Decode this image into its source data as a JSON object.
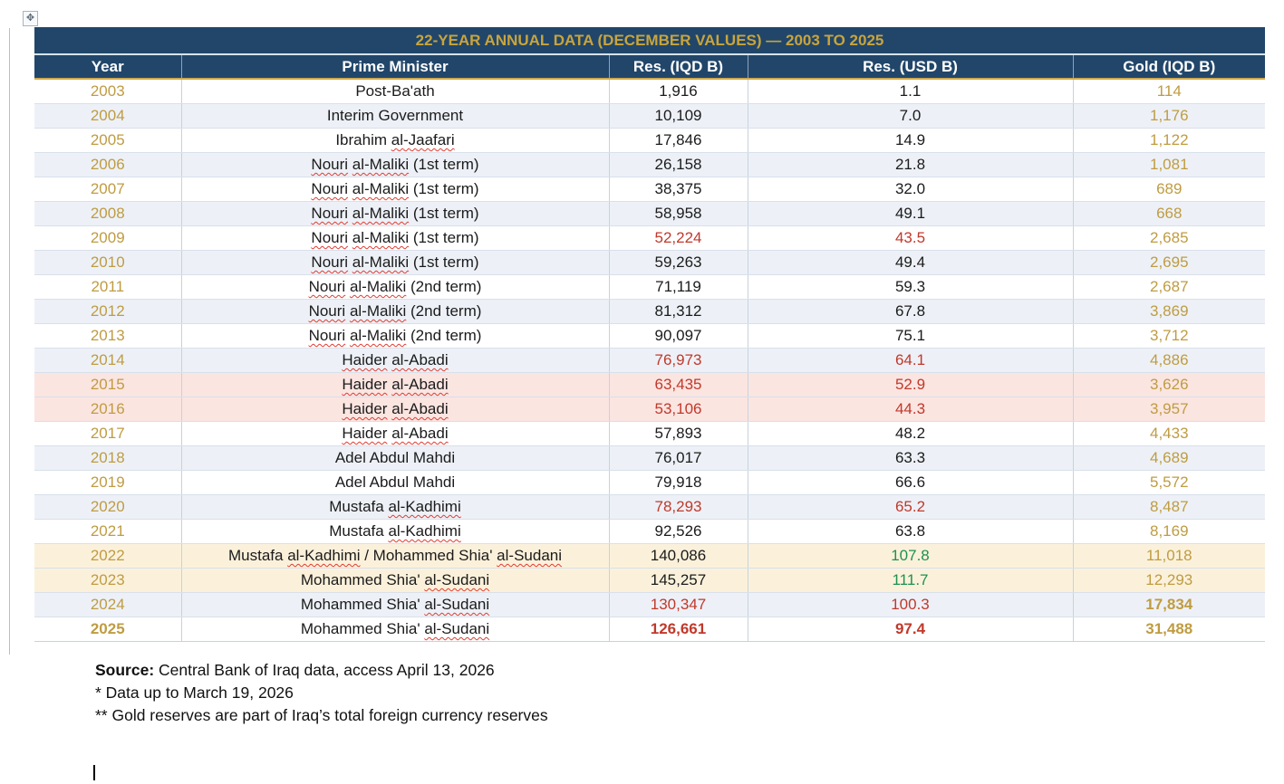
{
  "title": "22-YEAR ANNUAL DATA (DECEMBER VALUES) — 2003 TO 2025",
  "columns": [
    "Year",
    "Prime Minister",
    "Res. (IQD B)",
    "Res. (USD B)",
    "Gold (IQD B)"
  ],
  "rows": [
    {
      "year": "2003",
      "pm": "Post-Ba'ath",
      "res_iqd": "1,916",
      "res_usd": "1.1",
      "gold": "114",
      "bg": "white",
      "iqd_color": "dark",
      "usd_color": "dark",
      "year_bold": false,
      "values_bold": false,
      "gold_bold": false
    },
    {
      "year": "2004",
      "pm": "Interim Government",
      "res_iqd": "10,109",
      "res_usd": "7.0",
      "gold": "1,176",
      "bg": "blue",
      "iqd_color": "dark",
      "usd_color": "dark",
      "year_bold": false,
      "values_bold": false,
      "gold_bold": false
    },
    {
      "year": "2005",
      "pm": "Ibrahim al-Jaafari",
      "res_iqd": "17,846",
      "res_usd": "14.9",
      "gold": "1,122",
      "bg": "white",
      "iqd_color": "dark",
      "usd_color": "dark",
      "year_bold": false,
      "values_bold": false,
      "gold_bold": false
    },
    {
      "year": "2006",
      "pm": "Nouri al-Maliki (1st term)",
      "res_iqd": "26,158",
      "res_usd": "21.8",
      "gold": "1,081",
      "bg": "blue",
      "iqd_color": "dark",
      "usd_color": "dark",
      "year_bold": false,
      "values_bold": false,
      "gold_bold": false
    },
    {
      "year": "2007",
      "pm": "Nouri al-Maliki (1st term)",
      "res_iqd": "38,375",
      "res_usd": "32.0",
      "gold": "689",
      "bg": "white",
      "iqd_color": "dark",
      "usd_color": "dark",
      "year_bold": false,
      "values_bold": false,
      "gold_bold": false
    },
    {
      "year": "2008",
      "pm": "Nouri al-Maliki (1st term)",
      "res_iqd": "58,958",
      "res_usd": "49.1",
      "gold": "668",
      "bg": "blue",
      "iqd_color": "dark",
      "usd_color": "dark",
      "year_bold": false,
      "values_bold": false,
      "gold_bold": false
    },
    {
      "year": "2009",
      "pm": "Nouri al-Maliki (1st term)",
      "res_iqd": "52,224",
      "res_usd": "43.5",
      "gold": "2,685",
      "bg": "white",
      "iqd_color": "red",
      "usd_color": "red",
      "year_bold": false,
      "values_bold": false,
      "gold_bold": false
    },
    {
      "year": "2010",
      "pm": "Nouri al-Maliki (1st term)",
      "res_iqd": "59,263",
      "res_usd": "49.4",
      "gold": "2,695",
      "bg": "blue",
      "iqd_color": "dark",
      "usd_color": "dark",
      "year_bold": false,
      "values_bold": false,
      "gold_bold": false
    },
    {
      "year": "2011",
      "pm": "Nouri al-Maliki (2nd term)",
      "res_iqd": "71,119",
      "res_usd": "59.3",
      "gold": "2,687",
      "bg": "white",
      "iqd_color": "dark",
      "usd_color": "dark",
      "year_bold": false,
      "values_bold": false,
      "gold_bold": false
    },
    {
      "year": "2012",
      "pm": "Nouri al-Maliki (2nd term)",
      "res_iqd": "81,312",
      "res_usd": "67.8",
      "gold": "3,869",
      "bg": "blue",
      "iqd_color": "dark",
      "usd_color": "dark",
      "year_bold": false,
      "values_bold": false,
      "gold_bold": false
    },
    {
      "year": "2013",
      "pm": "Nouri al-Maliki (2nd term)",
      "res_iqd": "90,097",
      "res_usd": "75.1",
      "gold": "3,712",
      "bg": "white",
      "iqd_color": "dark",
      "usd_color": "dark",
      "year_bold": false,
      "values_bold": false,
      "gold_bold": false
    },
    {
      "year": "2014",
      "pm": "Haider al-Abadi",
      "res_iqd": "76,973",
      "res_usd": "64.1",
      "gold": "4,886",
      "bg": "blue",
      "iqd_color": "red",
      "usd_color": "red",
      "year_bold": false,
      "values_bold": false,
      "gold_bold": false
    },
    {
      "year": "2015",
      "pm": "Haider al-Abadi",
      "res_iqd": "63,435",
      "res_usd": "52.9",
      "gold": "3,626",
      "bg": "pink",
      "iqd_color": "red",
      "usd_color": "red",
      "year_bold": false,
      "values_bold": false,
      "gold_bold": false
    },
    {
      "year": "2016",
      "pm": "Haider al-Abadi",
      "res_iqd": "53,106",
      "res_usd": "44.3",
      "gold": "3,957",
      "bg": "pink",
      "iqd_color": "red",
      "usd_color": "red",
      "year_bold": false,
      "values_bold": false,
      "gold_bold": false
    },
    {
      "year": "2017",
      "pm": "Haider al-Abadi",
      "res_iqd": "57,893",
      "res_usd": "48.2",
      "gold": "4,433",
      "bg": "white",
      "iqd_color": "dark",
      "usd_color": "dark",
      "year_bold": false,
      "values_bold": false,
      "gold_bold": false
    },
    {
      "year": "2018",
      "pm": "Adel Abdul Mahdi",
      "res_iqd": "76,017",
      "res_usd": "63.3",
      "gold": "4,689",
      "bg": "blue",
      "iqd_color": "dark",
      "usd_color": "dark",
      "year_bold": false,
      "values_bold": false,
      "gold_bold": false
    },
    {
      "year": "2019",
      "pm": "Adel Abdul Mahdi",
      "res_iqd": "79,918",
      "res_usd": "66.6",
      "gold": "5,572",
      "bg": "white",
      "iqd_color": "dark",
      "usd_color": "dark",
      "year_bold": false,
      "values_bold": false,
      "gold_bold": false
    },
    {
      "year": "2020",
      "pm": "Mustafa al-Kadhimi",
      "res_iqd": "78,293",
      "res_usd": "65.2",
      "gold": "8,487",
      "bg": "blue",
      "iqd_color": "red",
      "usd_color": "red",
      "year_bold": false,
      "values_bold": false,
      "gold_bold": false
    },
    {
      "year": "2021",
      "pm": "Mustafa al-Kadhimi",
      "res_iqd": "92,526",
      "res_usd": "63.8",
      "gold": "8,169",
      "bg": "white",
      "iqd_color": "dark",
      "usd_color": "dark",
      "year_bold": false,
      "values_bold": false,
      "gold_bold": false
    },
    {
      "year": "2022",
      "pm": "Mustafa al-Kadhimi / Mohammed Shia' al-Sudani",
      "res_iqd": "140,086",
      "res_usd": "107.8",
      "gold": "11,018",
      "bg": "cream",
      "iqd_color": "dark",
      "usd_color": "green",
      "year_bold": false,
      "values_bold": false,
      "gold_bold": false
    },
    {
      "year": "2023",
      "pm": "Mohammed Shia' al-Sudani",
      "res_iqd": "145,257",
      "res_usd": "111.7",
      "gold": "12,293",
      "bg": "cream",
      "iqd_color": "dark",
      "usd_color": "green",
      "year_bold": false,
      "values_bold": false,
      "gold_bold": false
    },
    {
      "year": "2024",
      "pm": "Mohammed Shia' al-Sudani",
      "res_iqd": "130,347",
      "res_usd": "100.3",
      "gold": "17,834",
      "bg": "blue",
      "iqd_color": "red",
      "usd_color": "red",
      "year_bold": false,
      "values_bold": false,
      "gold_bold": true
    },
    {
      "year": "2025",
      "pm": "Mohammed Shia' al-Sudani",
      "res_iqd": "126,661",
      "res_usd": "97.4",
      "gold": "31,488",
      "bg": "white",
      "iqd_color": "red",
      "usd_color": "red",
      "year_bold": true,
      "values_bold": true,
      "gold_bold": true
    }
  ],
  "footer": {
    "source_label": "Source:",
    "source_text": " Central Bank of Iraq data, access April 13, 2026",
    "note1": "* Data up to March 19, 2026",
    "note2": "** Gold reserves are part of Iraq’s total foreign currency reserves"
  },
  "icons": {
    "table_move_handle": "✥"
  },
  "spellcheck_tokens": [
    "al-Jaafari",
    "al-Kadhimi",
    "al-Maliki",
    "al-Sudani",
    "al-Abadi",
    "Haider",
    "Sudani",
    "Nouri"
  ],
  "colors": {
    "navy": "#21466a",
    "gold": "#c9a43c",
    "gold_text": "#bf9c42",
    "red": "#c0392b",
    "green": "#1e9150",
    "row_blue": "#edf1f7",
    "row_pink": "#fbe5e1",
    "row_cream": "#fbf1db"
  }
}
